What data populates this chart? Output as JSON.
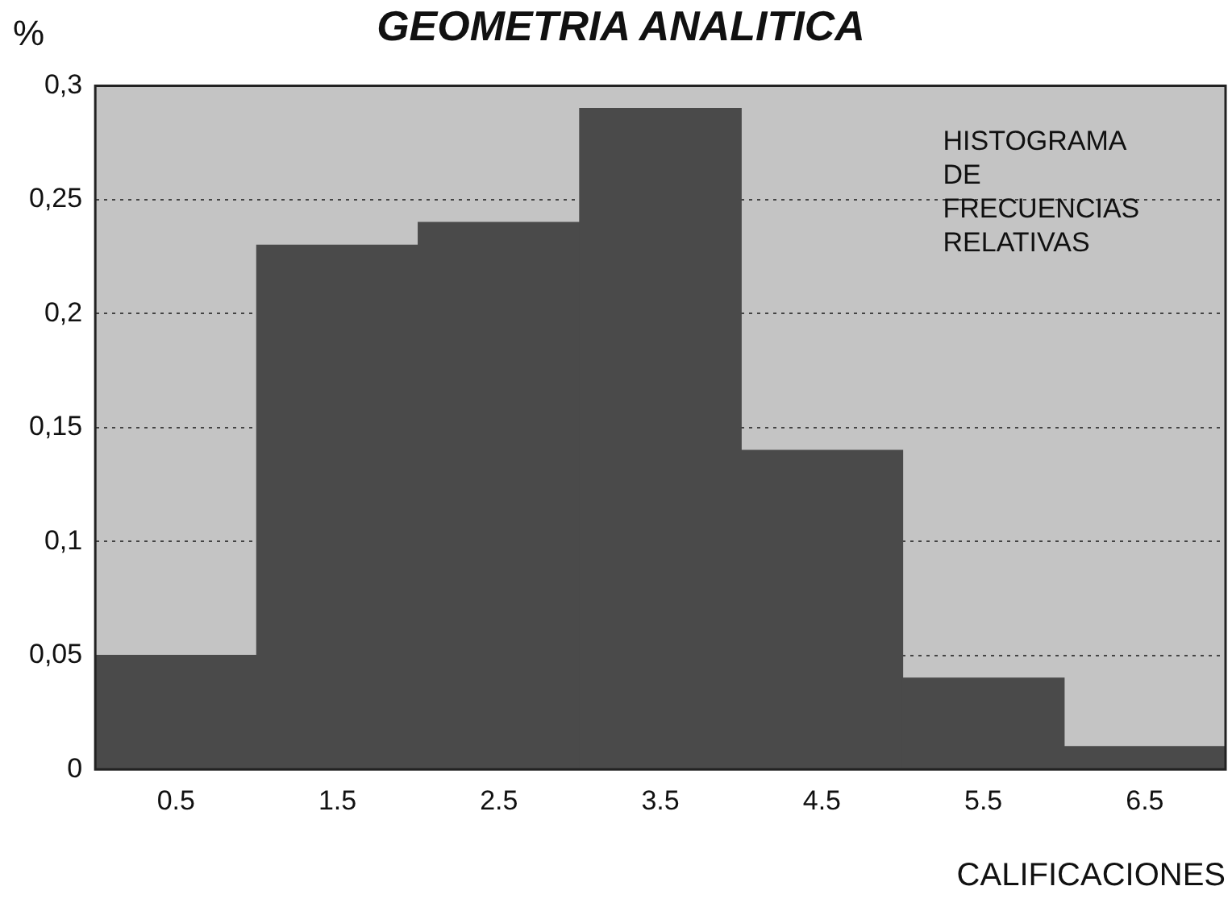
{
  "chart_data": {
    "type": "histogram",
    "title": "GEOMETRIA ANALITICA",
    "xlabel": "CALIFICACIONES",
    "ylabel": "%",
    "bins": [
      0,
      1,
      2,
      3,
      4,
      5,
      6,
      7
    ],
    "values": [
      0.05,
      0.23,
      0.24,
      0.29,
      0.14,
      0.04,
      0.01
    ],
    "color": "#4a4a4a",
    "xlim": [
      0,
      7
    ],
    "xticks": [
      0.5,
      1.5,
      2.5,
      3.5,
      4.5,
      5.5,
      6.5
    ],
    "ylim": [
      0,
      0.3
    ],
    "yticks": [
      {
        "value": 0,
        "label": "0"
      },
      {
        "value": 0.05,
        "label": "0,05"
      },
      {
        "value": 0.1,
        "label": "0,1"
      },
      {
        "value": 0.15,
        "label": "0,15"
      },
      {
        "value": 0.2,
        "label": "0,2"
      },
      {
        "value": 0.25,
        "label": "0,25"
      },
      {
        "value": 0.3,
        "label": "0,3"
      }
    ],
    "grid": "y",
    "legend": false,
    "annotations": [
      "HISTOGRAMA DE FRECUENCIAS RELATIVAS"
    ]
  }
}
